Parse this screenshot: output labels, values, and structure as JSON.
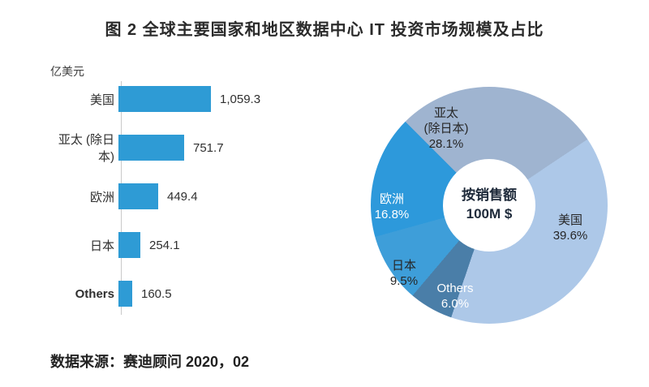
{
  "title": "图 2  全球主要国家和地区数据中心 IT 投资市场规模及占比",
  "source": "数据来源：赛迪顾问  2020，02",
  "chart_data": [
    {
      "type": "bar",
      "orientation": "horizontal",
      "unit_label": "亿美元",
      "categories": [
        "美国",
        "亚太 (除日本)",
        "欧洲",
        "日本",
        "Others"
      ],
      "values": [
        1059.3,
        751.7,
        449.4,
        254.1,
        160.5
      ],
      "value_labels": [
        "1,059.3",
        "751.7",
        "449.4",
        "254.1",
        "160.5"
      ],
      "bar_color": "#2E9BD5",
      "xlim": [
        0,
        1100
      ],
      "grid": false,
      "legend": false
    },
    {
      "type": "pie",
      "donut": true,
      "center_label_line1": "按销售额",
      "center_label_line2": "100M $",
      "start_angle_deg": -45,
      "slices": [
        {
          "label_line1": "亚太",
          "label_line2": "(除日本)",
          "pct": 28.1,
          "pct_label": "28.1%",
          "color": "#9FB4D0"
        },
        {
          "label_line1": "美国",
          "pct": 39.6,
          "pct_label": "39.6%",
          "color": "#ADC8E8"
        },
        {
          "label_line1": "Others",
          "pct": 6.0,
          "pct_label": "6.0%",
          "color": "#4A7EA8"
        },
        {
          "label_line1": "日本",
          "pct": 9.5,
          "pct_label": "9.5%",
          "color": "#3E9ED9"
        },
        {
          "label_line1": "欧洲",
          "pct": 16.8,
          "pct_label": "16.8%",
          "color": "#2D99DB"
        }
      ]
    }
  ]
}
